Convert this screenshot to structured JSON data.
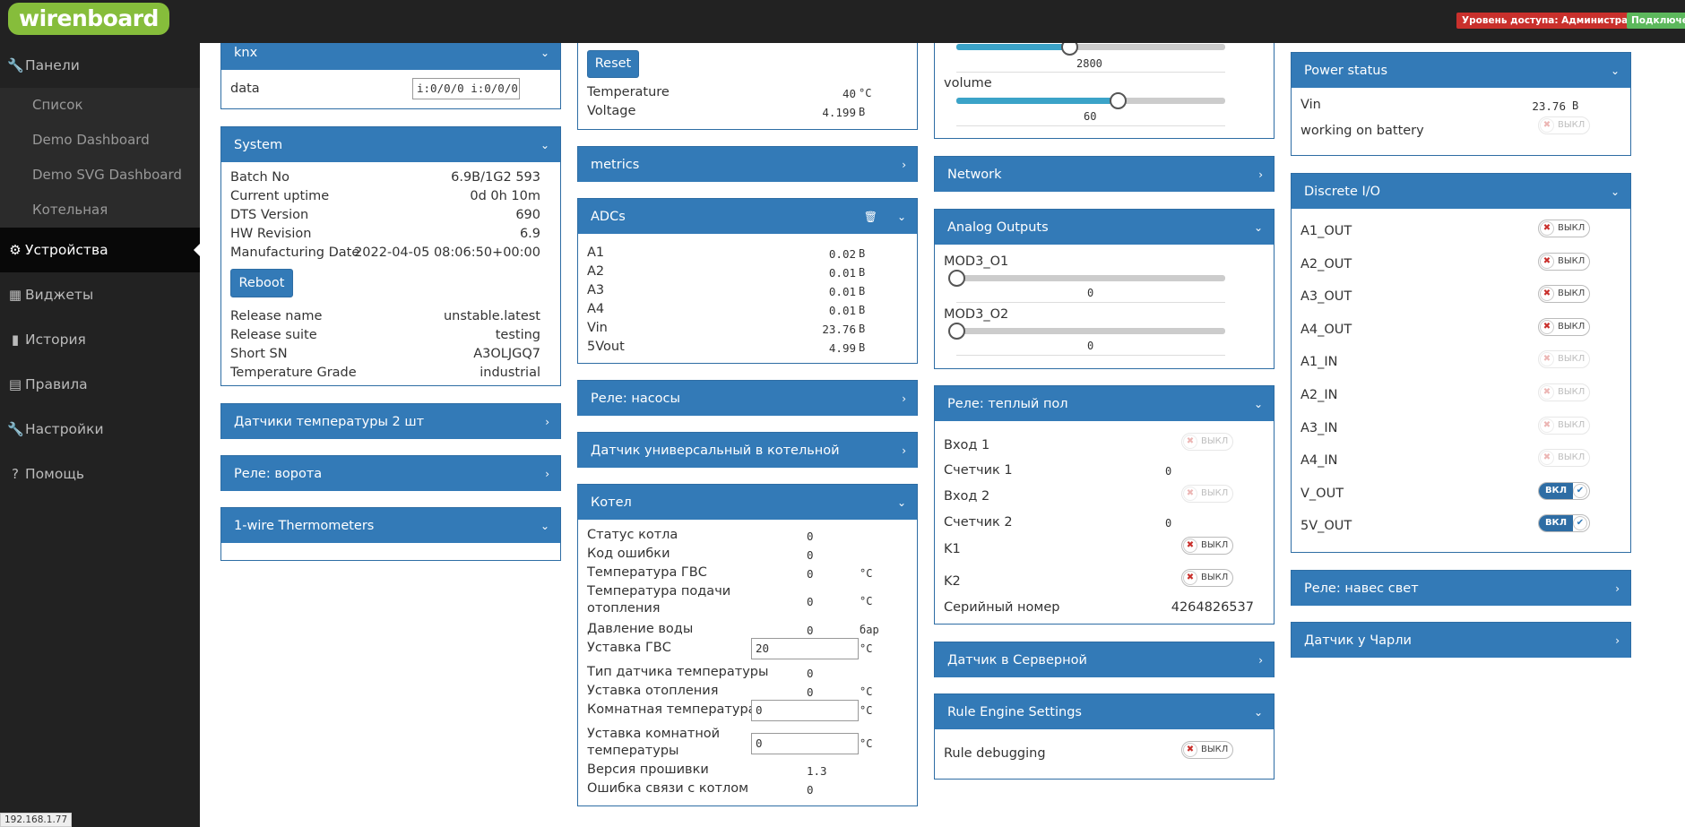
{
  "topbar": {
    "logo": "wirenboard",
    "access": "Уровень доступа: Администратор",
    "connection": "Подключено"
  },
  "sidebar": {
    "panels": "Панели",
    "list": "Список",
    "demo_dashboard": "Demo Dashboard",
    "demo_svg": "Demo SVG Dashboard",
    "boiler": "Котельная",
    "devices": "Устройства",
    "widgets": "Виджеты",
    "history": "История",
    "rules": "Правила",
    "settings": "Настройки",
    "help": "Помощь"
  },
  "ip": "192.168.1.77",
  "knx": {
    "title": "knx",
    "data_label": "data",
    "data_value": "i:0/0/0 i:0/0/0"
  },
  "system": {
    "title": "System",
    "reboot": "Reboot",
    "rows": [
      {
        "label": "Batch No",
        "value": "6.9B/1G2 593"
      },
      {
        "label": "Current uptime",
        "value": "0d 0h 10m"
      },
      {
        "label": "DTS Version",
        "value": "690"
      },
      {
        "label": "HW Revision",
        "value": "6.9"
      },
      {
        "label": "Manufacturing Date",
        "value": "2022-04-05 08:06:50+00:00"
      },
      {
        "label": "Release name",
        "value": "unstable.latest"
      },
      {
        "label": "Release suite",
        "value": "testing"
      },
      {
        "label": "Short SN",
        "value": "A3OLJGQ7"
      },
      {
        "label": "Temperature Grade",
        "value": "industrial"
      }
    ]
  },
  "col1_panels": [
    "Датчики температуры 2 шт",
    "Реле: ворота",
    "1-wire Thermometers"
  ],
  "battery": {
    "reset": "Reset",
    "temp_label": "Temperature",
    "temp_value": "40",
    "temp_unit": "°C",
    "volt_label": "Voltage",
    "volt_value": "4.199",
    "volt_unit": "В"
  },
  "metrics": {
    "title": "metrics"
  },
  "adcs": {
    "title": "ADCs",
    "trash": "🗑",
    "rows": [
      {
        "label": "A1",
        "value": "0.02",
        "unit": "В"
      },
      {
        "label": "A2",
        "value": "0.01",
        "unit": "В"
      },
      {
        "label": "A3",
        "value": "0.01",
        "unit": "В"
      },
      {
        "label": "A4",
        "value": "0.01",
        "unit": "В"
      },
      {
        "label": "Vin",
        "value": "23.76",
        "unit": "В"
      },
      {
        "label": "5Vout",
        "value": "4.99",
        "unit": "В"
      }
    ]
  },
  "col2_panels": [
    "Реле: насосы",
    "Датчик универсальный в котельной"
  ],
  "kotel": {
    "title": "Котел",
    "rows": [
      {
        "label": "Статус котла",
        "value": "0",
        "unit": ""
      },
      {
        "label": "Код ошибки",
        "value": "0",
        "unit": ""
      },
      {
        "label": "Температура ГВС",
        "value": "0",
        "unit": "°C"
      },
      {
        "label": "Температура подачи",
        "label2": "отопления",
        "value": "0",
        "unit": "°C"
      },
      {
        "label": "Давление воды",
        "value": "0",
        "unit": "бар"
      },
      {
        "label": "Уставка ГВС",
        "input": "20",
        "unit": "°C"
      },
      {
        "label": "Тип датчика температуры",
        "value": "0",
        "unit": ""
      },
      {
        "label": "Уставка отопления",
        "value": "0",
        "unit": "°C"
      },
      {
        "label": "Комнатная температура",
        "input": "0",
        "unit": "°C"
      },
      {
        "label": "Уставка комнатной",
        "label2": "температуры",
        "input": "0",
        "unit": "°C"
      },
      {
        "label": "Версия прошивки",
        "value": "1.3",
        "unit": ""
      },
      {
        "label": "Ошибка связи с котлом",
        "value": "0",
        "unit": ""
      }
    ]
  },
  "audio": {
    "s1_value": "2800",
    "volume_label": "volume",
    "volume_value": "60",
    "s1_fraction": 0.42,
    "volume_fraction": 0.6
  },
  "network": {
    "title": "Network"
  },
  "aout": {
    "title": "Analog Outputs",
    "o1_label": "MOD3_O1",
    "o1_value": "0",
    "o2_label": "MOD3_O2",
    "o2_value": "0"
  },
  "floor": {
    "title": "Реле: теплый пол",
    "in1": "Вход 1",
    "cnt1": "Счетчик 1",
    "cnt1_value": "0",
    "in2": "Вход 2",
    "cnt2": "Счетчик 2",
    "cnt2_value": "0",
    "k1": "K1",
    "k2": "K2",
    "serial_label": "Серийный номер",
    "serial_value": "4264826537"
  },
  "server_sensor": {
    "title": "Датчик в Серверной"
  },
  "rule_engine": {
    "title": "Rule Engine Settings",
    "debug": "Rule debugging"
  },
  "power": {
    "title": "Power status",
    "vin_label": "Vin",
    "vin_value": "23.76",
    "vin_unit": "В",
    "battery_label": "working on battery"
  },
  "dio": {
    "title": "Discrete I/O",
    "items": [
      {
        "label": "A1_OUT",
        "state": "off"
      },
      {
        "label": "A2_OUT",
        "state": "off"
      },
      {
        "label": "A3_OUT",
        "state": "off"
      },
      {
        "label": "A4_OUT",
        "state": "off"
      },
      {
        "label": "A1_IN",
        "state": "dis"
      },
      {
        "label": "A2_IN",
        "state": "dis"
      },
      {
        "label": "A3_IN",
        "state": "dis"
      },
      {
        "label": "A4_IN",
        "state": "dis"
      },
      {
        "label": "V_OUT",
        "state": "on"
      },
      {
        "label": "5V_OUT",
        "state": "on"
      }
    ]
  },
  "col4_panels": [
    "Реле: навес свет",
    "Датчик у Чарли"
  ],
  "toggle": {
    "off": "ВЫКЛ",
    "on": "ВКЛ",
    "x": "✖",
    "check": "✔"
  },
  "chev": {
    "down": "⌄",
    "right": "›"
  }
}
